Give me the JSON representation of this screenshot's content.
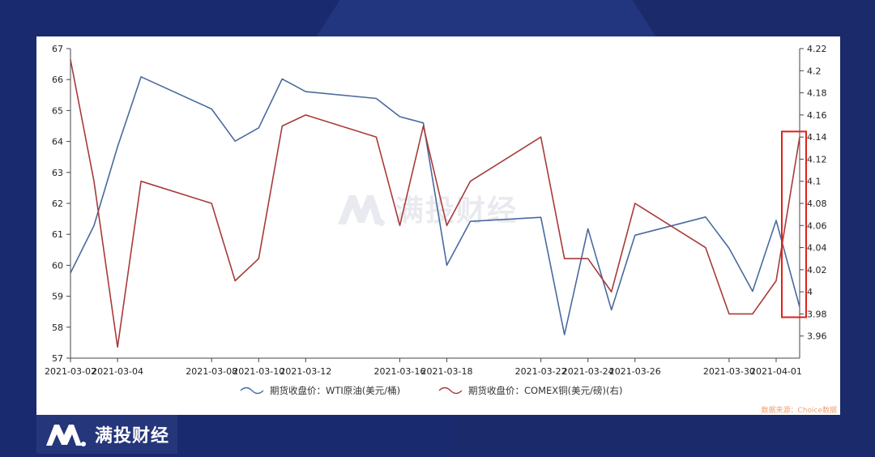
{
  "brand": {
    "name": "满投财经",
    "watermark": "满投财经"
  },
  "source_text": "数据来源：Choice数据",
  "colors": {
    "wti": "#4a6a9e",
    "copper": "#a83a3a",
    "highlight": "#e0201a"
  },
  "legend": [
    {
      "label": "期货收盘价：WTI原油(美元/桶)"
    },
    {
      "label": "期货收盘价：COMEX铜(美元/磅)(右)"
    }
  ],
  "chart_data": {
    "type": "line",
    "x_tick_labels": [
      "2021-03-02",
      "2021-03-04",
      "2021-03-08",
      "2021-03-10",
      "2021-03-12",
      "2021-03-16",
      "2021-03-18",
      "2021-03-22",
      "2021-03-24",
      "2021-03-26",
      "2021-03-30",
      "2021-04-01"
    ],
    "x": [
      "2021-03-02",
      "2021-03-03",
      "2021-03-04",
      "2021-03-05",
      "2021-03-08",
      "2021-03-09",
      "2021-03-10",
      "2021-03-11",
      "2021-03-12",
      "2021-03-15",
      "2021-03-16",
      "2021-03-17",
      "2021-03-18",
      "2021-03-19",
      "2021-03-22",
      "2021-03-23",
      "2021-03-24",
      "2021-03-25",
      "2021-03-26",
      "2021-03-29",
      "2021-03-30",
      "2021-03-31",
      "2021-04-01",
      "2021-04-02"
    ],
    "left_axis": {
      "ylim": [
        57,
        67
      ],
      "ticks": [
        57,
        58,
        59,
        60,
        61,
        62,
        63,
        64,
        65,
        66,
        67
      ]
    },
    "right_axis": {
      "ylim": [
        3.94,
        4.22
      ],
      "ticks": [
        3.96,
        3.98,
        4,
        4.02,
        4.04,
        4.06,
        4.08,
        4.1,
        4.12,
        4.14,
        4.16,
        4.18,
        4.2,
        4.22
      ],
      "tick_labels": [
        "3.96",
        "3.98",
        "4",
        "4.02",
        "4.04",
        "4.06",
        "4.08",
        "4.1",
        "4.12",
        "4.14",
        "4.16",
        "4.18",
        "4.2",
        "4.22"
      ]
    },
    "series": [
      {
        "name": "期货收盘价：WTI原油(美元/桶)",
        "axis": "left",
        "values": [
          59.75,
          61.28,
          63.83,
          66.09,
          65.05,
          64.01,
          64.44,
          66.02,
          65.61,
          65.39,
          64.8,
          64.6,
          60.0,
          61.42,
          61.55,
          57.76,
          61.18,
          58.56,
          60.97,
          61.56,
          60.55,
          59.16,
          61.45,
          58.65
        ]
      },
      {
        "name": "期货收盘价：COMEX铜(美元/磅)(右)",
        "axis": "right",
        "values": [
          4.21,
          4.1,
          3.95,
          4.1,
          4.08,
          4.01,
          4.03,
          4.15,
          4.16,
          4.14,
          4.06,
          4.15,
          4.06,
          4.1,
          4.14,
          4.03,
          4.03,
          4.0,
          4.08,
          4.04,
          3.98,
          3.98,
          4.01,
          4.14
        ]
      }
    ],
    "grid": false,
    "legend_position": "bottom"
  }
}
